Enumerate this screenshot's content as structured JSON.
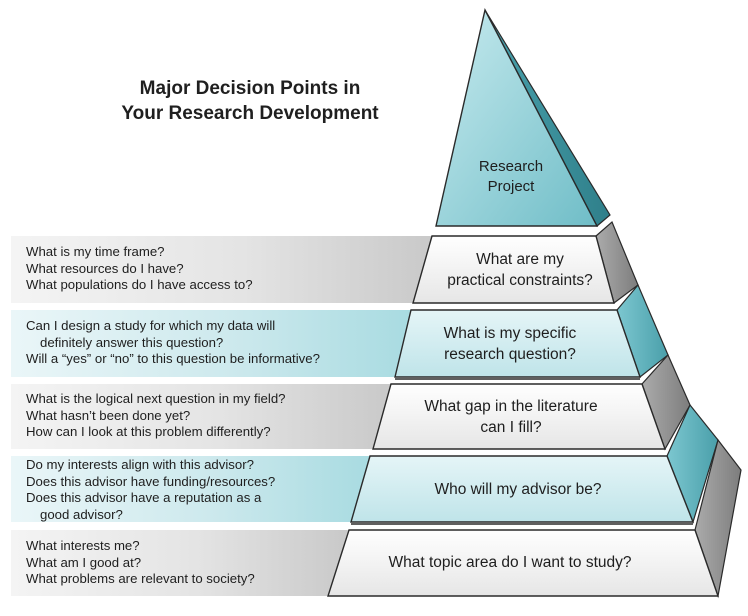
{
  "title": [
    "Major Decision Points in",
    "Your Research Development"
  ],
  "apex": [
    "Research",
    "Project"
  ],
  "tiers": [
    {
      "label": [
        "What are my",
        "practical constraints?"
      ],
      "questions": [
        "What is my time frame?",
        "What resources do I have?",
        "What populations do I have access to?"
      ],
      "style": "gray"
    },
    {
      "label": [
        "What is my specific",
        "research question?"
      ],
      "questions": [
        "Can I design a study for which my data will",
        "   definitely answer this question?",
        "Will a “yes” or “no” to this question be informative?"
      ],
      "style": "teal"
    },
    {
      "label": [
        "What gap in the literature",
        "can I fill?"
      ],
      "questions": [
        "What is the logical next question in my field?",
        "What hasn’t been done yet?",
        "How can I look at this problem differently?"
      ],
      "style": "gray"
    },
    {
      "label": [
        "Who will my advisor be?"
      ],
      "questions": [
        "Do my interests align with this advisor?",
        "Does this advisor have funding/resources?",
        "Does this advisor have a reputation as a",
        "   good advisor?"
      ],
      "style": "teal"
    },
    {
      "label": [
        "What topic area do I want to study?"
      ],
      "questions": [
        "What interests me?",
        "What am I good at?",
        "What problems are relevant to society?"
      ],
      "style": "gray"
    }
  ],
  "colors": {
    "teal_light": "#d7eef1",
    "teal_mid": "#8fcfd7",
    "teal_dark": "#4fa9b5",
    "gray_light": "#f1f1f1",
    "gray_mid": "#c4c4c4",
    "gray_dark": "#8c8c8c",
    "outline": "#2a2a2a"
  }
}
